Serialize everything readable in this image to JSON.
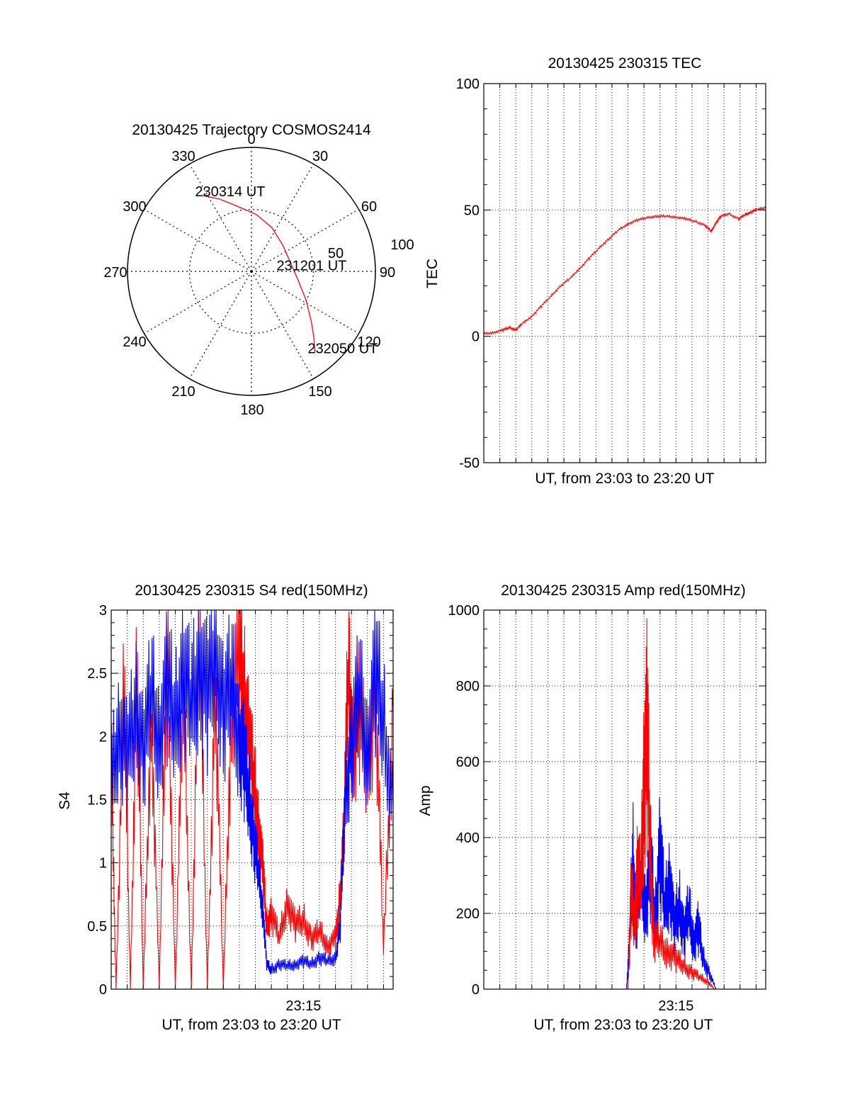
{
  "chart_data": [
    {
      "type": "polar",
      "title": "20130425 Trajectory COSMOS2414",
      "angle_labels": [
        "0",
        "30",
        "60",
        "90",
        "120",
        "150",
        "180",
        "210",
        "240",
        "270",
        "300",
        "330"
      ],
      "radial_labels": [
        "50",
        "100"
      ],
      "series": [
        {
          "color": "#ff0000",
          "points": [
            {
              "az": 327,
              "r": 73
            },
            {
              "az": 336,
              "r": 64
            },
            {
              "az": 346,
              "r": 55
            },
            {
              "az": 5,
              "r": 46
            },
            {
              "az": 25,
              "r": 39
            },
            {
              "az": 50,
              "r": 33
            },
            {
              "az": 75,
              "r": 32
            },
            {
              "az": 100,
              "r": 38
            },
            {
              "az": 118,
              "r": 50
            },
            {
              "az": 130,
              "r": 63
            },
            {
              "az": 137,
              "r": 74
            },
            {
              "az": 142,
              "r": 83
            }
          ]
        }
      ],
      "annotations": [
        {
          "text": "230314 UT",
          "az": 327,
          "r": 73
        },
        {
          "text": "231201 UT",
          "az": 87,
          "r": 26
        },
        {
          "text": "232050 UT",
          "az": 142,
          "r": 83
        }
      ]
    },
    {
      "type": "line",
      "title": "20130425 230315 TEC",
      "xlabel": "UT, from 23:03 to 23:20 UT",
      "ylabel": "TEC",
      "ylim": [
        -50,
        100
      ],
      "xlim_minutes": [
        0,
        17.6
      ],
      "yticks": [
        "-50",
        "0",
        "50",
        "100"
      ],
      "grid": true,
      "series": [
        {
          "color": "#ff0000",
          "x": [
            0,
            0.6,
            1.2,
            1.6,
            2.0,
            2.4,
            3.0,
            3.6,
            4.2,
            4.8,
            5.4,
            6.0,
            6.6,
            7.2,
            7.8,
            8.4,
            9.0,
            9.6,
            10.2,
            10.8,
            11.4,
            12.0,
            12.6,
            13.2,
            13.8,
            14.2,
            14.5,
            14.8,
            15.3,
            15.9,
            16.3,
            16.6,
            17.0,
            17.6
          ],
          "y": [
            1,
            1.5,
            2.5,
            3.5,
            2.5,
            5,
            8,
            12,
            16,
            20,
            23,
            27,
            31,
            35,
            38.5,
            42,
            44.5,
            46,
            47,
            47.5,
            47.5,
            47.2,
            46.5,
            45.5,
            44,
            41.5,
            45,
            47.5,
            48.5,
            46.5,
            48,
            49,
            50,
            51
          ]
        }
      ]
    },
    {
      "type": "line",
      "title": "20130425 230315 S4 red(150MHz)",
      "xlabel": "UT, from 23:03 to 23:20 UT",
      "ylabel": "S4",
      "ylim": [
        0,
        3
      ],
      "xlim_minutes": [
        0,
        17.6
      ],
      "xticks": [
        {
          "label": "23:15",
          "x": 12
        }
      ],
      "yticks": [
        "0",
        "0.5",
        "1",
        "1.5",
        "2",
        "2.5",
        "3"
      ],
      "grid": true,
      "series": [
        {
          "color": "#ff0000",
          "x": [
            0,
            0.3,
            0.8,
            1.2,
            1.6,
            2.0,
            2.5,
            3.0,
            3.5,
            4.0,
            4.5,
            5.0,
            5.5,
            6.0,
            6.5,
            7.0,
            7.5,
            8.0,
            8.3,
            8.6,
            8.9,
            9.2,
            9.5,
            9.7,
            10.0,
            10.5,
            11.0,
            11.5,
            12.0,
            12.5,
            13.0,
            13.5,
            14.0,
            14.2,
            14.5,
            14.8,
            15.1,
            15.5,
            16.0,
            16.5,
            17.0,
            17.6
          ],
          "y": [
            1.9,
            0,
            2.4,
            0,
            2.6,
            0,
            2.2,
            0,
            2.8,
            0,
            2.5,
            0,
            3,
            0,
            2.4,
            0,
            2.2,
            2.7,
            2.3,
            2.0,
            1.6,
            1.3,
            0.9,
            0.5,
            0.6,
            0.4,
            0.7,
            0.5,
            0.55,
            0.4,
            0.45,
            0.35,
            0.4,
            0.6,
            1.2,
            2.5,
            1.9,
            2.2,
            1.7,
            2.4,
            0.3,
            2.2
          ]
        },
        {
          "color": "#0000ff",
          "x": [
            0,
            0.5,
            1.0,
            1.5,
            2.0,
            2.5,
            3.0,
            3.5,
            4.0,
            4.5,
            5.0,
            5.5,
            6.0,
            6.5,
            7.0,
            7.5,
            8.0,
            8.3,
            8.6,
            8.9,
            9.2,
            9.5,
            9.7,
            10.0,
            10.5,
            11.0,
            11.5,
            12.0,
            12.5,
            13.0,
            13.5,
            14.0,
            14.3,
            14.6,
            15.0,
            15.5,
            16.0,
            16.5,
            17.0,
            17.6
          ],
          "y": [
            1.6,
            2.1,
            1.8,
            2.2,
            1.9,
            2.3,
            2.0,
            2.4,
            2.1,
            2.5,
            2.2,
            2.6,
            2.3,
            2.7,
            2.2,
            2.4,
            2.0,
            1.8,
            1.5,
            1.2,
            0.9,
            0.6,
            0.2,
            0.15,
            0.2,
            0.18,
            0.2,
            0.22,
            0.2,
            0.25,
            0.22,
            0.25,
            0.5,
            1.5,
            2.0,
            2.3,
            1.9,
            2.5,
            2.1,
            1.4
          ]
        }
      ]
    },
    {
      "type": "line",
      "title": "20130425 230315 Amp red(150MHz)",
      "xlabel": "UT, from 23:03 to 23:20 UT",
      "ylabel": "Amp",
      "ylim": [
        0,
        1000
      ],
      "xlim_minutes": [
        0,
        17.6
      ],
      "xticks": [
        {
          "label": "23:15",
          "x": 12
        }
      ],
      "yticks": [
        "0",
        "200",
        "400",
        "600",
        "800",
        "1000"
      ],
      "grid": true,
      "series": [
        {
          "color": "#0000ff",
          "x": [
            0,
            8.9,
            9.1,
            9.3,
            9.5,
            9.8,
            10.1,
            10.4,
            10.7,
            11.0,
            11.3,
            11.6,
            11.9,
            12.2,
            12.5,
            12.8,
            13.1,
            13.4,
            13.7,
            14.1,
            14.5,
            17.6
          ],
          "y": [
            0,
            0,
            120,
            350,
            180,
            300,
            220,
            330,
            180,
            380,
            200,
            300,
            160,
            220,
            150,
            200,
            130,
            160,
            80,
            40,
            0,
            0
          ]
        },
        {
          "color": "#ff0000",
          "x": [
            0,
            9.0,
            9.2,
            9.4,
            9.6,
            9.8,
            10.0,
            10.2,
            10.4,
            10.6,
            11.0,
            11.5,
            12.0,
            12.5,
            13.0,
            13.5,
            14.0,
            14.4,
            17.6
          ],
          "y": [
            0,
            0,
            250,
            180,
            320,
            260,
            580,
            670,
            350,
            140,
            120,
            100,
            80,
            60,
            45,
            30,
            20,
            0,
            0
          ]
        }
      ]
    }
  ]
}
